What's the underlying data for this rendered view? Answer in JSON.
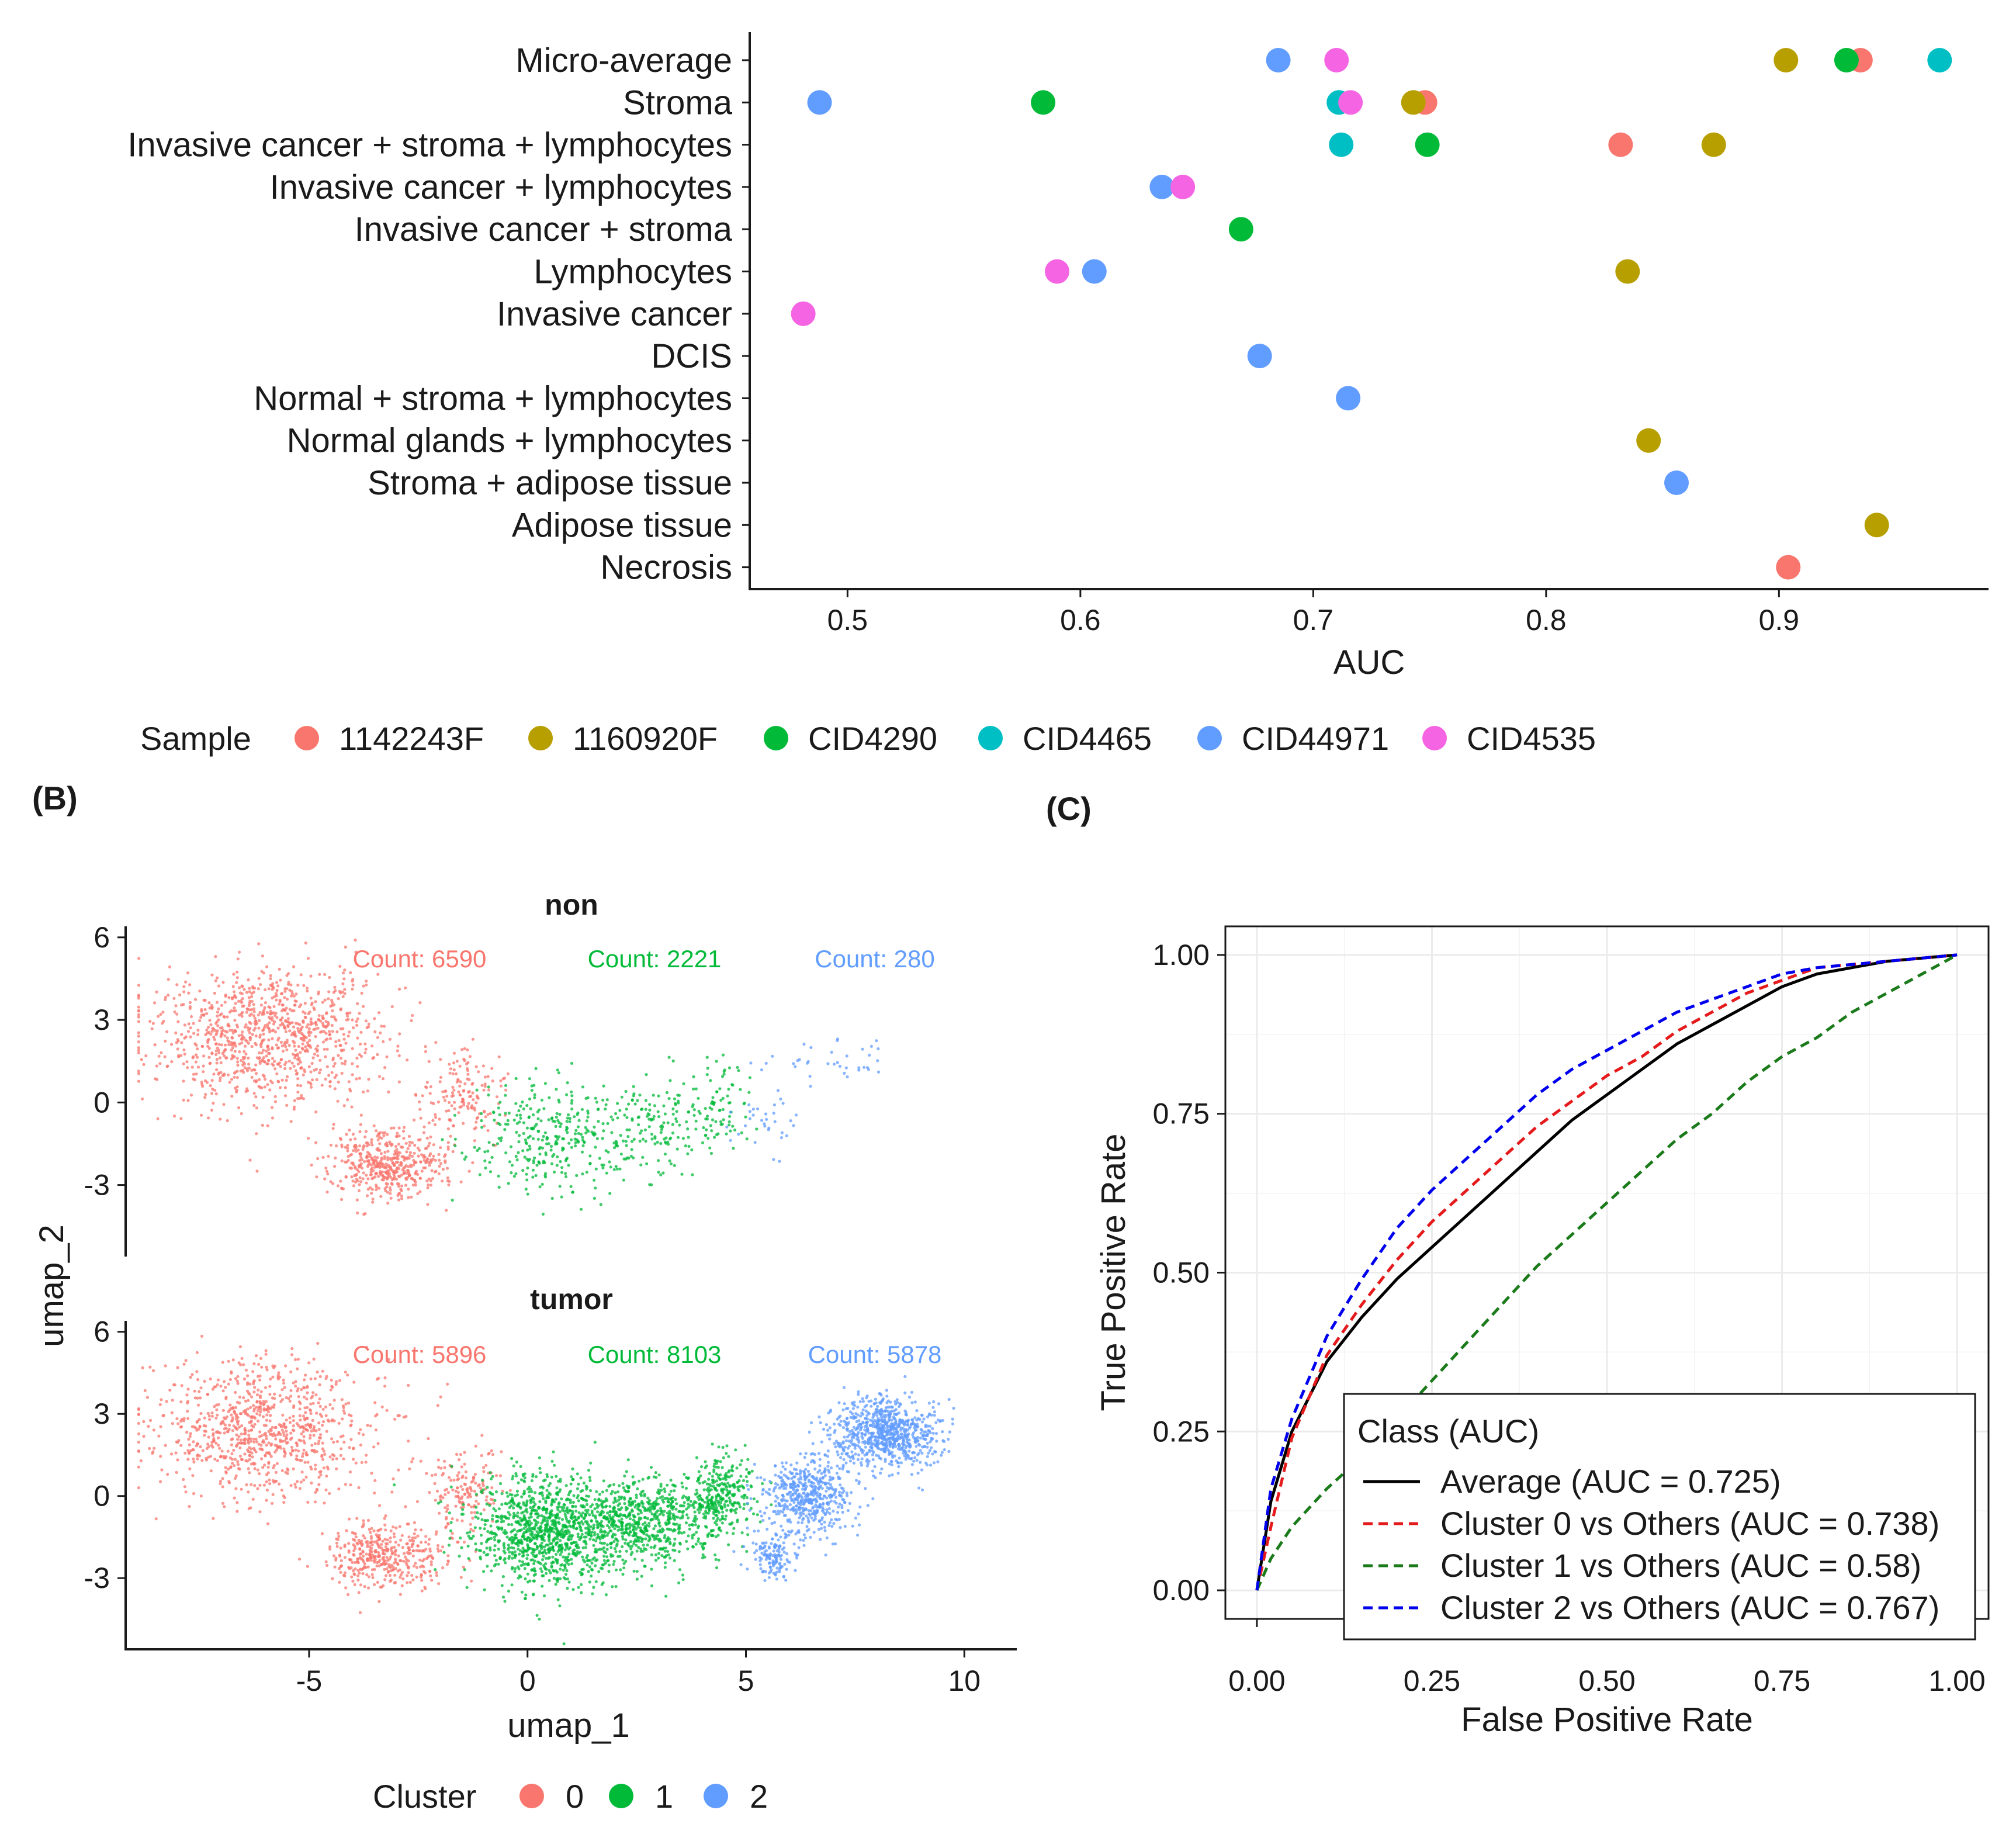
{
  "chart_data": [
    {
      "type": "scatter",
      "panel": "A",
      "categories": [
        "Micro-average",
        "Stroma",
        "Invasive cancer + stroma + lymphocytes",
        "Invasive cancer + lymphocytes",
        "Invasive cancer + stroma",
        "Lymphocytes",
        "Invasive cancer",
        "DCIS",
        "Normal + stroma + lymphocytes",
        "Normal glands + lymphocytes",
        "Stroma + adipose tissue",
        "Adipose tissue",
        "Necrosis"
      ],
      "xlabel": "AUC",
      "xlim": [
        0.458,
        0.99
      ],
      "xticks": [
        "0.5",
        "0.6",
        "0.7",
        "0.8",
        "0.9"
      ],
      "xtick_values": [
        0.5,
        0.6,
        0.7,
        0.8,
        0.9
      ],
      "legend_title": "Sample",
      "legend_position": "bottom",
      "series": [
        {
          "name": "1142243F",
          "color": "#F8766D",
          "points": [
            [
              "Micro-average",
              0.935
            ],
            [
              "Stroma",
              0.748
            ],
            [
              "Invasive cancer + stroma + lymphocytes",
              0.832
            ],
            [
              "Necrosis",
              0.904
            ]
          ]
        },
        {
          "name": "1160920F",
          "color": "#B79F00",
          "points": [
            [
              "Micro-average",
              0.903
            ],
            [
              "Stroma",
              0.743
            ],
            [
              "Invasive cancer + stroma + lymphocytes",
              0.872
            ],
            [
              "Lymphocytes",
              0.835
            ],
            [
              "Normal glands + lymphocytes",
              0.844
            ],
            [
              "Adipose tissue",
              0.942
            ]
          ]
        },
        {
          "name": "CID4290",
          "color": "#00BA38",
          "points": [
            [
              "Micro-average",
              0.929
            ],
            [
              "Stroma",
              0.584
            ],
            [
              "Invasive cancer + stroma + lymphocytes",
              0.749
            ],
            [
              "Invasive cancer + stroma",
              0.669
            ]
          ]
        },
        {
          "name": "CID4465",
          "color": "#00BFC4",
          "points": [
            [
              "Micro-average",
              0.969
            ],
            [
              "Stroma",
              0.711
            ],
            [
              "Invasive cancer + stroma + lymphocytes",
              0.712
            ]
          ]
        },
        {
          "name": "CID44971",
          "color": "#619CFF",
          "points": [
            [
              "Micro-average",
              0.685
            ],
            [
              "Stroma",
              0.488
            ],
            [
              "Invasive cancer + lymphocytes",
              0.635
            ],
            [
              "Lymphocytes",
              0.606
            ],
            [
              "DCIS",
              0.677
            ],
            [
              "Normal + stroma + lymphocytes",
              0.715
            ],
            [
              "Stroma + adipose tissue",
              0.856
            ]
          ]
        },
        {
          "name": "CID4535",
          "color": "#F564E3",
          "points": [
            [
              "Micro-average",
              0.71
            ],
            [
              "Stroma",
              0.716
            ],
            [
              "Invasive cancer + lymphocytes",
              0.644
            ],
            [
              "Lymphocytes",
              0.59
            ],
            [
              "Invasive cancer",
              0.481
            ]
          ]
        }
      ]
    },
    {
      "type": "scatter",
      "panel": "B",
      "tag": "(B)",
      "xlabel": "umap_1",
      "ylabel": "umap_2",
      "xlim": [
        -9.2,
        11.2
      ],
      "ylim": [
        -5.6,
        6.4
      ],
      "xticks": [
        "-5",
        "0",
        "5",
        "10"
      ],
      "xtick_values": [
        -5,
        0,
        5,
        10
      ],
      "yticks": [
        "6",
        "3",
        "0",
        "-3"
      ],
      "ytick_values": [
        6,
        3,
        0,
        -3
      ],
      "legend_title": "Cluster",
      "legend_position": "bottom",
      "clusters": [
        {
          "name": "0",
          "color": "#F8766D"
        },
        {
          "name": "1",
          "color": "#00BA38"
        },
        {
          "name": "2",
          "color": "#619CFF"
        }
      ],
      "facets": [
        {
          "name": "non",
          "counts": [
            "Count: 6590",
            "Count: 2221",
            "Count: 280"
          ],
          "n": [
            6590,
            2221,
            280
          ]
        },
        {
          "name": "tumor",
          "counts": [
            "Count: 5896",
            "Count: 8103",
            "Count: 5878"
          ],
          "n": [
            5896,
            8103,
            5878
          ]
        }
      ]
    },
    {
      "type": "line",
      "panel": "C",
      "tag": "(C)",
      "xlabel": "False Positive Rate",
      "ylabel": "True Positive Rate",
      "xlim": [
        -0.045,
        1.045
      ],
      "ylim": [
        -0.045,
        1.045
      ],
      "xticks": [
        "0.00",
        "0.25",
        "0.50",
        "0.75",
        "1.00"
      ],
      "yticks": [
        "0.00",
        "0.25",
        "0.50",
        "0.75",
        "1.00"
      ],
      "tick_values": [
        0,
        0.25,
        0.5,
        0.75,
        1
      ],
      "grid": true,
      "legend_title": "Class (AUC)",
      "legend_position": "bottom-right",
      "series": [
        {
          "name": "Average (AUC = 0.725)",
          "color": "#000000",
          "dashed": false,
          "x": [
            0,
            0.02,
            0.05,
            0.1,
            0.15,
            0.2,
            0.25,
            0.3,
            0.35,
            0.4,
            0.45,
            0.5,
            0.55,
            0.6,
            0.65,
            0.7,
            0.75,
            0.8,
            0.9,
            1.0
          ],
          "y": [
            0,
            0.14,
            0.25,
            0.36,
            0.43,
            0.49,
            0.54,
            0.59,
            0.64,
            0.69,
            0.74,
            0.78,
            0.82,
            0.86,
            0.89,
            0.92,
            0.95,
            0.97,
            0.99,
            1.0
          ]
        },
        {
          "name": "Cluster 0 vs Others (AUC = 0.738)",
          "color": "#E41A1C",
          "dashed": true,
          "x": [
            0,
            0.02,
            0.05,
            0.1,
            0.15,
            0.2,
            0.25,
            0.3,
            0.35,
            0.4,
            0.45,
            0.5,
            0.55,
            0.6,
            0.65,
            0.7,
            0.75,
            0.8,
            0.9,
            1.0
          ],
          "y": [
            0,
            0.1,
            0.24,
            0.37,
            0.45,
            0.52,
            0.58,
            0.63,
            0.68,
            0.73,
            0.77,
            0.81,
            0.84,
            0.88,
            0.91,
            0.94,
            0.96,
            0.98,
            0.99,
            1.0
          ]
        },
        {
          "name": "Cluster 1 vs Others (AUC = 0.58)",
          "color": "#1B7B1B",
          "dashed": true,
          "x": [
            0,
            0.02,
            0.05,
            0.1,
            0.15,
            0.2,
            0.25,
            0.3,
            0.35,
            0.4,
            0.45,
            0.5,
            0.55,
            0.6,
            0.65,
            0.7,
            0.75,
            0.8,
            0.85,
            0.9,
            0.95,
            1.0
          ],
          "y": [
            0,
            0.05,
            0.1,
            0.16,
            0.21,
            0.27,
            0.33,
            0.39,
            0.45,
            0.51,
            0.56,
            0.61,
            0.66,
            0.71,
            0.75,
            0.8,
            0.84,
            0.87,
            0.91,
            0.94,
            0.97,
            1.0
          ]
        },
        {
          "name": "Cluster 2 vs Others (AUC = 0.767)",
          "color": "#0000EE",
          "dashed": true,
          "x": [
            0,
            0.02,
            0.05,
            0.1,
            0.15,
            0.2,
            0.25,
            0.3,
            0.35,
            0.4,
            0.45,
            0.5,
            0.55,
            0.6,
            0.65,
            0.7,
            0.75,
            0.8,
            0.9,
            1.0
          ],
          "y": [
            0,
            0.16,
            0.27,
            0.4,
            0.49,
            0.57,
            0.63,
            0.68,
            0.73,
            0.78,
            0.82,
            0.85,
            0.88,
            0.91,
            0.93,
            0.95,
            0.97,
            0.98,
            0.99,
            1.0
          ]
        }
      ]
    }
  ]
}
